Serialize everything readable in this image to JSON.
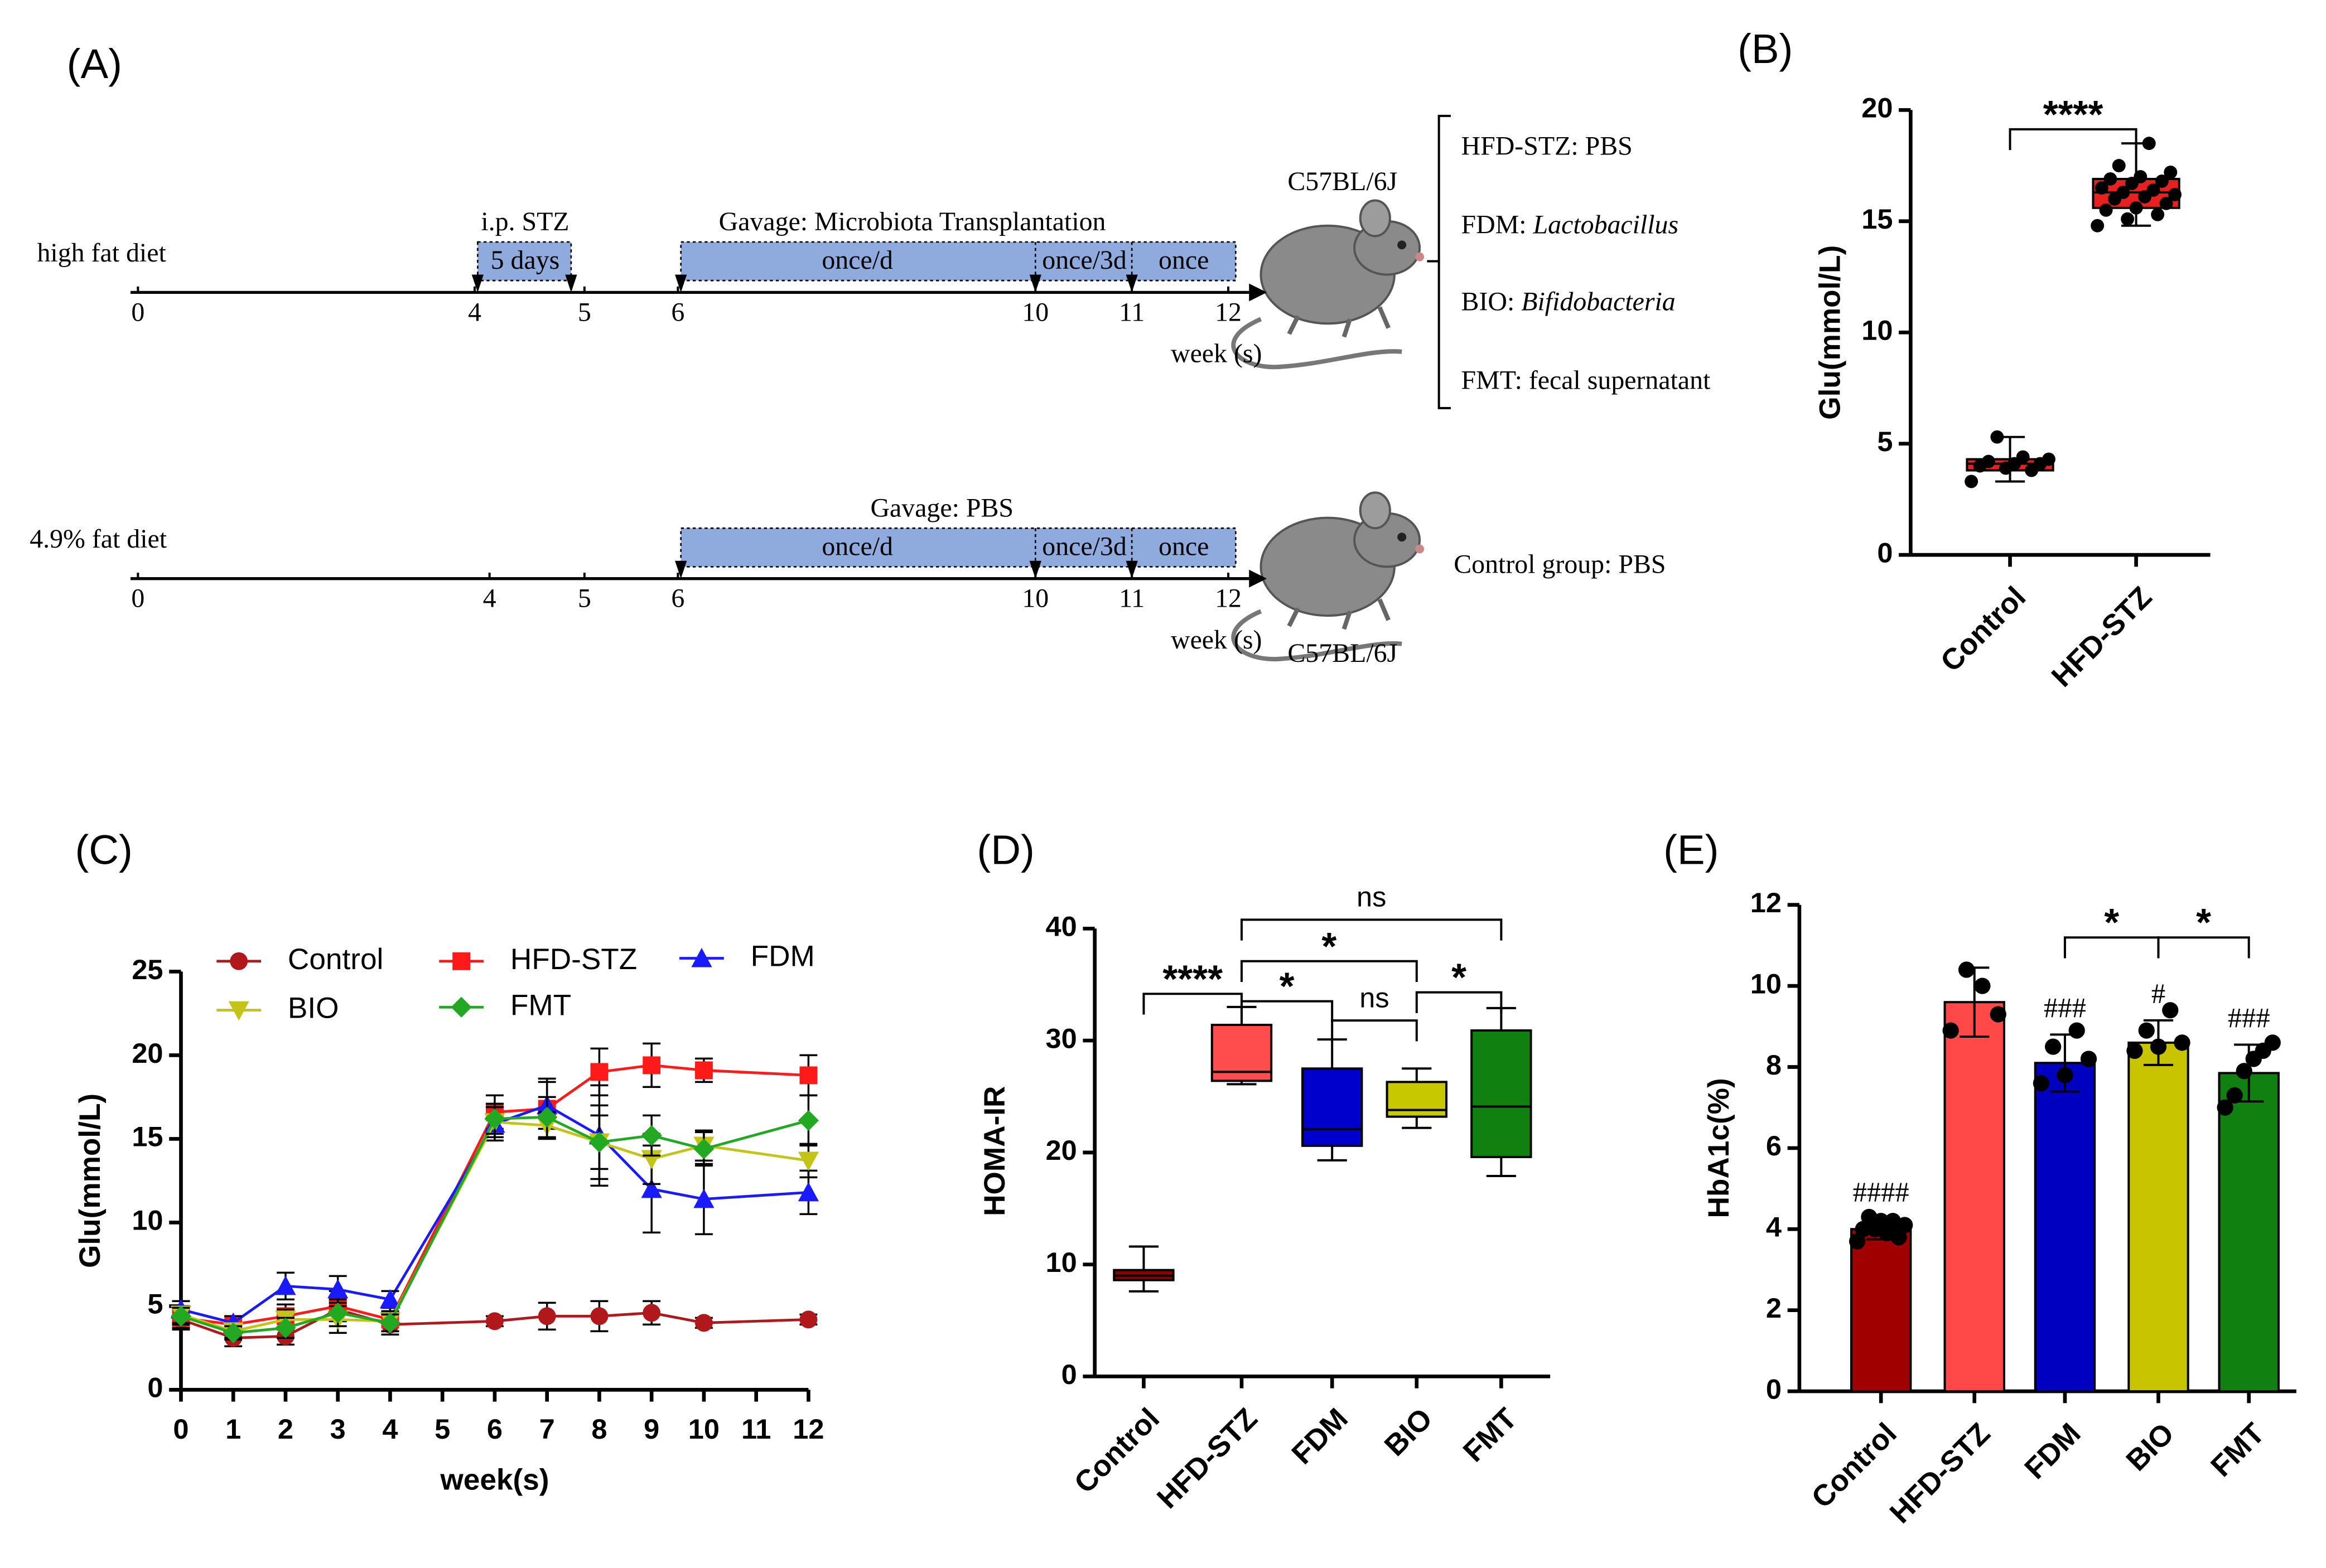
{
  "diagram": {
    "label": "(A)",
    "timelines": [
      {
        "diet": "high fat diet",
        "weeks": [
          "0",
          "4",
          "5",
          "6",
          "10",
          "11",
          "12"
        ],
        "unit": "week (s)",
        "strain": "C57BL/6J",
        "injection": {
          "title": "i.p. STZ",
          "duration": "5 days"
        },
        "gavage": {
          "title": "Gavage: Microbiota Transplantation",
          "phases": [
            "once/d",
            "once/3d",
            "once"
          ]
        },
        "groups": [
          {
            "group": "HFD-STZ: ",
            "treatment": "PBS"
          },
          {
            "group": "FDM: ",
            "treatment": "Lactobacillus"
          },
          {
            "group": "BIO: ",
            "treatment": "Bifidobacteria"
          },
          {
            "group": "FMT: ",
            "treatment": "fecal supernatant"
          }
        ]
      },
      {
        "diet": "4.9% fat diet",
        "weeks": [
          "0",
          "4",
          "5",
          "6",
          "10",
          "11",
          "12"
        ],
        "unit": "week (s)",
        "strain": "C57BL/6J",
        "gavage": {
          "title": "Gavage: PBS",
          "phases": [
            "once/d",
            "once/3d",
            "once"
          ]
        },
        "groups": [
          {
            "group": "Control group: ",
            "treatment": "PBS"
          }
        ]
      }
    ]
  },
  "chart_data": [
    {
      "label": "(B)",
      "type": "box",
      "ylabel": "Glu(mmol/L)",
      "categories": [
        "Control",
        "HFD-STZ"
      ],
      "colors": [
        "#e8201f",
        "#e8201f"
      ],
      "ylim": [
        0,
        20
      ],
      "yticks": [
        0,
        5,
        10,
        15,
        20
      ],
      "boxes": [
        {
          "min": 3.3,
          "q1": 3.8,
          "median": 4.1,
          "q3": 4.3,
          "max": 5.3,
          "points": [
            3.3,
            3.8,
            3.9,
            4.0,
            4.1,
            4.1,
            4.2,
            4.3,
            4.4,
            5.3
          ]
        },
        {
          "min": 14.8,
          "q1": 15.6,
          "median": 16.3,
          "q3": 16.9,
          "max": 18.5,
          "points": [
            14.8,
            15.1,
            15.3,
            15.5,
            15.6,
            15.8,
            16.0,
            16.1,
            16.2,
            16.3,
            16.4,
            16.5,
            16.7,
            16.8,
            16.9,
            17.0,
            17.2,
            17.5,
            18.5
          ]
        }
      ],
      "comparisons": [
        {
          "pair": [
            "Control",
            "HFD-STZ"
          ],
          "label": "****"
        }
      ]
    },
    {
      "label": "(C)",
      "type": "line",
      "xlabel": "week(s)",
      "ylabel": "Glu(mmol/L)",
      "x": [
        0,
        1,
        2,
        3,
        4,
        6,
        7,
        8,
        9,
        10,
        12
      ],
      "xlim": [
        0,
        12
      ],
      "xticks": [
        0,
        1,
        2,
        3,
        4,
        5,
        6,
        7,
        8,
        9,
        10,
        11,
        12
      ],
      "ylim": [
        0,
        25
      ],
      "yticks": [
        0,
        5,
        10,
        15,
        20,
        25
      ],
      "series": [
        {
          "name": "Control",
          "color": "#b0181c",
          "marker": "circle",
          "values": [
            4.2,
            3.1,
            3.2,
            4.8,
            3.9,
            4.1,
            4.4,
            4.4,
            4.6,
            4.0,
            4.2
          ],
          "errors": [
            0.6,
            0.5,
            0.5,
            0.7,
            0.6,
            0.3,
            0.8,
            0.9,
            0.7,
            0.3,
            0.3
          ]
        },
        {
          "name": "HFD-STZ",
          "color": "#ff1a1a",
          "marker": "square",
          "values": [
            4.3,
            3.9,
            4.4,
            5.0,
            4.2,
            16.6,
            16.8,
            19.0,
            19.4,
            19.1,
            18.8
          ],
          "errors": [
            0.6,
            0.5,
            0.7,
            0.9,
            0.7,
            1.0,
            1.8,
            1.4,
            1.3,
            0.7,
            1.2
          ]
        },
        {
          "name": "FDM",
          "color": "#1a1aff",
          "marker": "triangle-up",
          "values": [
            4.8,
            4.0,
            6.2,
            6.0,
            5.4,
            15.9,
            17.0,
            15.2,
            12.0,
            11.4,
            11.8
          ],
          "errors": [
            0.5,
            0.4,
            0.8,
            0.8,
            0.5,
            1.0,
            1.4,
            3.0,
            2.6,
            2.1,
            1.3
          ]
        },
        {
          "name": "BIO",
          "color": "#c4c418",
          "marker": "triangle-down",
          "values": [
            4.5,
            3.5,
            4.2,
            4.2,
            4.1,
            16.0,
            15.8,
            14.8,
            13.8,
            14.6,
            13.7
          ],
          "errors": [
            0.5,
            0.4,
            0.6,
            0.8,
            0.6,
            0.9,
            0.8,
            2.2,
            1.5,
            0.9,
            1.0
          ]
        },
        {
          "name": "FMT",
          "color": "#22a822",
          "marker": "diamond",
          "values": [
            4.4,
            3.4,
            3.7,
            4.6,
            4.0,
            16.2,
            16.3,
            14.8,
            15.2,
            14.4,
            16.1
          ],
          "errors": [
            0.5,
            0.4,
            0.6,
            0.8,
            0.5,
            0.9,
            1.2,
            1.6,
            1.2,
            1.0,
            1.5
          ]
        }
      ]
    },
    {
      "label": "(D)",
      "type": "box",
      "ylabel": "HOMA-IR",
      "categories": [
        "Control",
        "HFD-STZ",
        "FDM",
        "BIO",
        "FMT"
      ],
      "colors": [
        "#8b0000",
        "#ff4c4c",
        "#0000cc",
        "#c8c800",
        "#108010"
      ],
      "ylim": [
        0,
        40
      ],
      "yticks": [
        0,
        10,
        20,
        30,
        40
      ],
      "boxes": [
        {
          "min": 7.6,
          "q1": 8.6,
          "median": 9.0,
          "q3": 9.5,
          "max": 11.6
        },
        {
          "min": 26.1,
          "q1": 26.4,
          "median": 27.2,
          "q3": 31.4,
          "max": 33.0
        },
        {
          "min": 19.3,
          "q1": 20.6,
          "median": 22.1,
          "q3": 27.5,
          "max": 30.1
        },
        {
          "min": 22.2,
          "q1": 23.2,
          "median": 23.8,
          "q3": 26.3,
          "max": 27.5
        },
        {
          "min": 17.9,
          "q1": 19.6,
          "median": 24.1,
          "q3": 30.9,
          "max": 32.9
        }
      ],
      "comparisons": [
        {
          "pair": [
            "Control",
            "HFD-STZ"
          ],
          "label": "****"
        },
        {
          "pair": [
            "HFD-STZ",
            "FDM"
          ],
          "label": "*"
        },
        {
          "pair": [
            "FDM",
            "BIO"
          ],
          "label": "ns"
        },
        {
          "pair": [
            "BIO",
            "FMT"
          ],
          "label": "*"
        },
        {
          "pair": [
            "HFD-STZ",
            "BIO"
          ],
          "label": "*"
        },
        {
          "pair": [
            "HFD-STZ",
            "FMT"
          ],
          "label": "ns"
        }
      ]
    },
    {
      "label": "(E)",
      "type": "bar",
      "ylabel": "HbA1c(%)",
      "categories": [
        "Control",
        "HFD-STZ",
        "FDM",
        "BIO",
        "FMT"
      ],
      "colors": [
        "#a00000",
        "#ff4848",
        "#0000c0",
        "#c8c400",
        "#108010"
      ],
      "ylim": [
        0,
        12
      ],
      "yticks": [
        0,
        2,
        4,
        6,
        8,
        10,
        12
      ],
      "values": [
        4.0,
        9.6,
        8.1,
        8.6,
        7.85
      ],
      "errors": [
        0.25,
        0.85,
        0.7,
        0.55,
        0.7
      ],
      "annotations": [
        "####",
        null,
        "###",
        "#",
        "###"
      ],
      "points": [
        [
          3.7,
          3.8,
          3.9,
          4.0,
          4.0,
          4.1,
          4.2,
          4.2,
          4.3
        ],
        [
          8.9,
          9.3,
          10.0,
          10.4
        ],
        [
          7.6,
          7.8,
          8.2,
          8.5,
          8.9
        ],
        [
          8.4,
          8.5,
          8.6,
          8.9,
          9.4
        ],
        [
          7.0,
          7.3,
          7.9,
          8.2,
          8.4,
          8.6
        ]
      ],
      "comparisons": [
        {
          "pair": [
            "FDM",
            "BIO"
          ],
          "label": "*"
        },
        {
          "pair": [
            "BIO",
            "FMT"
          ],
          "label": "*"
        }
      ]
    }
  ]
}
